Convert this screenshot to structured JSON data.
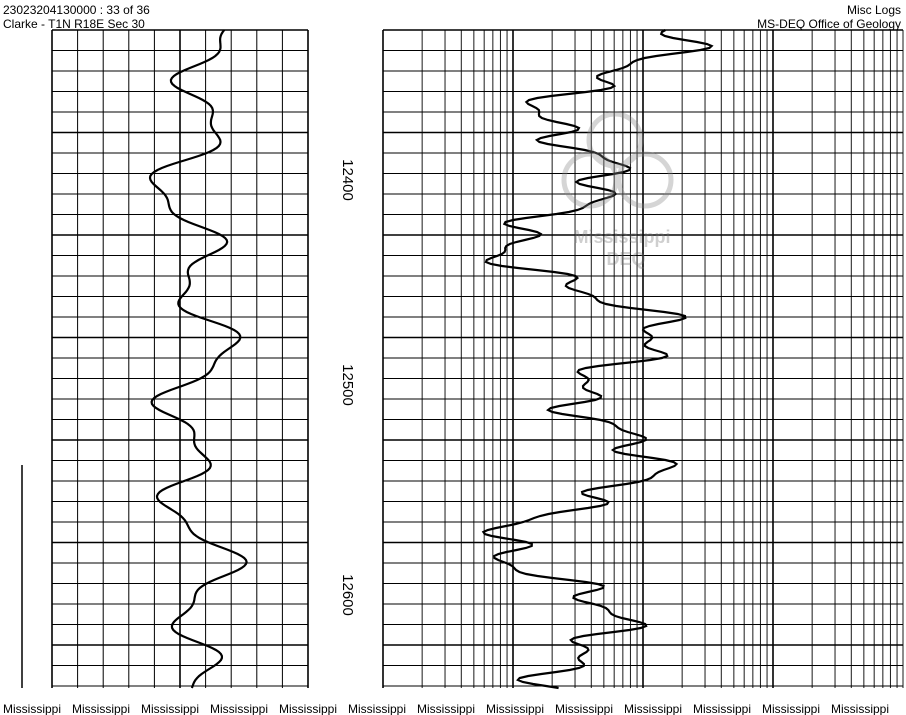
{
  "header": {
    "well_id": "23023204130000 : 33 of 36",
    "location": "Clarke - T1N R18E Sec 30",
    "log_type": "Misc Logs",
    "agency": "MS-DEQ Office of Geology"
  },
  "depth_labels": [
    "12400",
    "12500",
    "12600"
  ],
  "watermark": {
    "name": "Mississippi",
    "agency": "DEQ"
  },
  "footer": [
    "Mississippi",
    "Mississippi",
    "Mississippi",
    "Mississippi",
    "Mississippi",
    "Mississippi",
    "Mississippi",
    "Mississippi",
    "Mississippi",
    "Mississippi",
    "Mississippi",
    "Mississippi",
    "Mississippi"
  ]
}
